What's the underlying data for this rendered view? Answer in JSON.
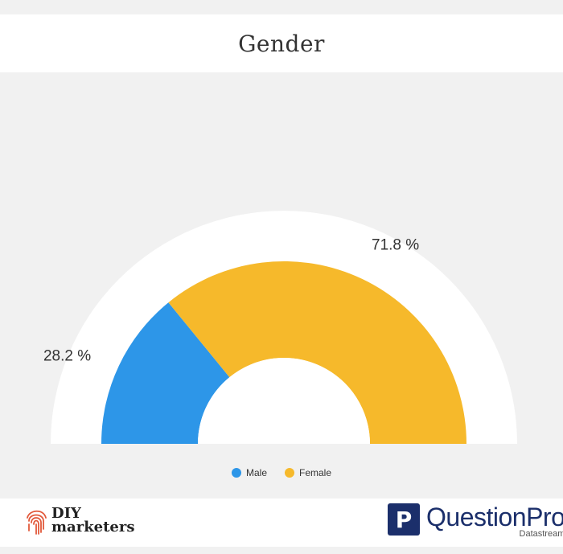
{
  "chart_data": {
    "type": "pie",
    "variant": "semi-donut",
    "title": "Gender",
    "series": [
      {
        "name": "Male",
        "value": 28.2,
        "label": "28.2 %",
        "color": "#2d96e8"
      },
      {
        "name": "Female",
        "value": 71.8,
        "label": "71.8 %",
        "color": "#f6b92b"
      }
    ],
    "legend_position": "bottom-center"
  },
  "legend": {
    "male": "Male",
    "female": "Female"
  },
  "footer": {
    "left_logo_line1": "DIY",
    "left_logo_line2": "marketers",
    "right_logo_mark": "P",
    "right_logo_name": "QuestionPro",
    "right_logo_sub": "Datastream"
  },
  "colors": {
    "male": "#2d96e8",
    "female": "#f6b92b",
    "brand_dark": "#1b2f6b",
    "fingerprint": "#e2593b"
  }
}
